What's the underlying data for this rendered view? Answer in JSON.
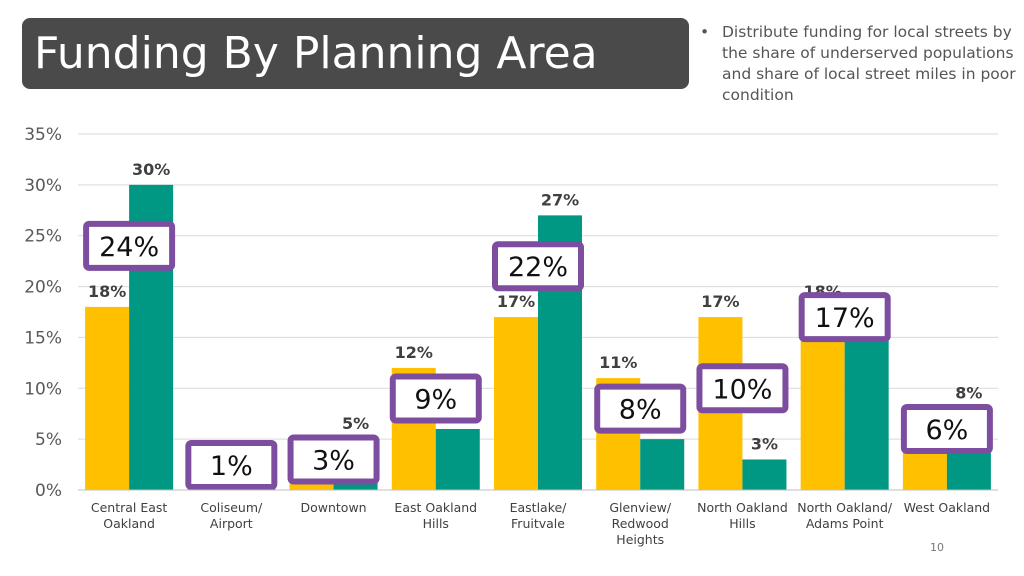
{
  "title": "Funding By Planning Area",
  "bullet": "Distribute funding for local streets by the share of underserved populations and share of local street miles in poor condition",
  "page_number": "10",
  "chart_data": {
    "type": "bar",
    "categories": [
      [
        "Central East",
        "Oakland"
      ],
      [
        "Coliseum/",
        "Airport"
      ],
      [
        "Downtown"
      ],
      [
        "East Oakland",
        "Hills"
      ],
      [
        "Eastlake/",
        "Fruitvale"
      ],
      [
        "Glenview/",
        "Redwood",
        "Heights"
      ],
      [
        "North Oakland",
        "Hills"
      ],
      [
        "North Oakland/",
        "Adams Point"
      ],
      [
        "West Oakland"
      ]
    ],
    "series": [
      {
        "color": "#FFC000",
        "values": [
          18,
          1,
          2,
          12,
          17,
          11,
          17,
          18,
          4
        ],
        "labels": [
          "18%",
          "",
          "",
          "12%",
          "17%",
          "11%",
          "17%",
          "18%",
          ""
        ]
      },
      {
        "color": "#009882",
        "values": [
          30,
          1,
          5,
          6,
          27,
          5,
          3,
          16,
          8
        ],
        "labels": [
          "30%",
          "",
          "5%",
          "",
          "27%",
          "",
          "3%",
          "",
          "8%"
        ]
      }
    ],
    "combined": {
      "border_color": "#7D4E9F",
      "values": [
        24,
        1,
        3,
        9,
        22,
        8,
        10,
        17,
        6
      ],
      "labels": [
        "24%",
        "1%",
        "3%",
        "9%",
        "22%",
        "8%",
        "10%",
        "17%",
        "6%"
      ]
    },
    "ylim": [
      0,
      35
    ],
    "yticks": [
      "0%",
      "5%",
      "10%",
      "15%",
      "20%",
      "25%",
      "30%",
      "35%"
    ],
    "grid": true
  }
}
